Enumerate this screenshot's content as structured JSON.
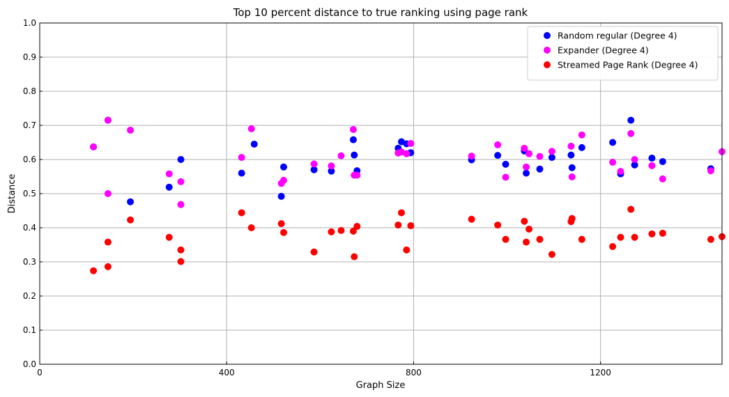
{
  "chart_data": {
    "type": "scatter",
    "title": "Top 10 percent distance to true ranking using page rank",
    "xlabel": "Graph Size",
    "ylabel": "Distance",
    "xlim": [
      0,
      1460
    ],
    "ylim": [
      0,
      1.0
    ],
    "xticks": [
      0,
      400,
      800,
      1200
    ],
    "yticks": [
      0,
      0.1,
      0.2,
      0.3,
      0.4,
      0.5,
      0.6,
      0.7,
      0.8,
      0.9,
      1.0
    ],
    "grid": true,
    "legend_position": "top-right",
    "series": [
      {
        "name": "Random regular (Degree 4)",
        "color": "#0000ff",
        "points": [
          [
            115,
            0.637
          ],
          [
            146,
            0.715
          ],
          [
            194,
            0.476
          ],
          [
            277,
            0.519
          ],
          [
            302,
            0.6
          ],
          [
            432,
            0.56
          ],
          [
            459,
            0.645
          ],
          [
            517,
            0.492
          ],
          [
            522,
            0.578
          ],
          [
            587,
            0.57
          ],
          [
            624,
            0.566
          ],
          [
            671,
            0.658
          ],
          [
            673,
            0.613
          ],
          [
            679,
            0.567
          ],
          [
            767,
            0.633
          ],
          [
            774,
            0.652
          ],
          [
            785,
            0.646
          ],
          [
            794,
            0.62
          ],
          [
            924,
            0.599
          ],
          [
            980,
            0.612
          ],
          [
            997,
            0.586
          ],
          [
            1037,
            0.625
          ],
          [
            1041,
            0.56
          ],
          [
            1070,
            0.572
          ],
          [
            1096,
            0.606
          ],
          [
            1137,
            0.613
          ],
          [
            1139,
            0.576
          ],
          [
            1160,
            0.635
          ],
          [
            1226,
            0.65
          ],
          [
            1243,
            0.558
          ],
          [
            1265,
            0.715
          ],
          [
            1273,
            0.584
          ],
          [
            1310,
            0.604
          ],
          [
            1333,
            0.594
          ],
          [
            1436,
            0.573
          ]
        ]
      },
      {
        "name": "Expander (Degree 4)",
        "color": "#ff00ff",
        "points": [
          [
            115,
            0.637
          ],
          [
            146,
            0.715
          ],
          [
            146,
            0.5
          ],
          [
            194,
            0.686
          ],
          [
            277,
            0.558
          ],
          [
            302,
            0.535
          ],
          [
            302,
            0.468
          ],
          [
            432,
            0.606
          ],
          [
            453,
            0.69
          ],
          [
            517,
            0.53
          ],
          [
            522,
            0.539
          ],
          [
            587,
            0.587
          ],
          [
            624,
            0.581
          ],
          [
            645,
            0.611
          ],
          [
            671,
            0.688
          ],
          [
            673,
            0.554
          ],
          [
            679,
            0.554
          ],
          [
            767,
            0.619
          ],
          [
            774,
            0.622
          ],
          [
            785,
            0.617
          ],
          [
            794,
            0.647
          ],
          [
            924,
            0.61
          ],
          [
            980,
            0.643
          ],
          [
            997,
            0.548
          ],
          [
            1037,
            0.633
          ],
          [
            1041,
            0.578
          ],
          [
            1047,
            0.617
          ],
          [
            1070,
            0.609
          ],
          [
            1096,
            0.624
          ],
          [
            1137,
            0.639
          ],
          [
            1139,
            0.549
          ],
          [
            1160,
            0.672
          ],
          [
            1226,
            0.592
          ],
          [
            1243,
            0.565
          ],
          [
            1265,
            0.676
          ],
          [
            1273,
            0.6
          ],
          [
            1310,
            0.582
          ],
          [
            1333,
            0.543
          ],
          [
            1436,
            0.567
          ],
          [
            1460,
            0.623
          ]
        ]
      },
      {
        "name": "Streamed Page Rank (Degree 4)",
        "color": "#ff0000",
        "points": [
          [
            115,
            0.274
          ],
          [
            146,
            0.286
          ],
          [
            146,
            0.358
          ],
          [
            194,
            0.423
          ],
          [
            277,
            0.372
          ],
          [
            302,
            0.335
          ],
          [
            302,
            0.301
          ],
          [
            432,
            0.444
          ],
          [
            453,
            0.4
          ],
          [
            517,
            0.412
          ],
          [
            522,
            0.386
          ],
          [
            587,
            0.329
          ],
          [
            624,
            0.388
          ],
          [
            645,
            0.392
          ],
          [
            671,
            0.39
          ],
          [
            673,
            0.315
          ],
          [
            679,
            0.404
          ],
          [
            767,
            0.408
          ],
          [
            774,
            0.444
          ],
          [
            785,
            0.335
          ],
          [
            794,
            0.406
          ],
          [
            924,
            0.425
          ],
          [
            980,
            0.408
          ],
          [
            997,
            0.366
          ],
          [
            1037,
            0.419
          ],
          [
            1041,
            0.358
          ],
          [
            1047,
            0.396
          ],
          [
            1070,
            0.366
          ],
          [
            1096,
            0.322
          ],
          [
            1137,
            0.418
          ],
          [
            1139,
            0.427
          ],
          [
            1160,
            0.366
          ],
          [
            1226,
            0.345
          ],
          [
            1243,
            0.372
          ],
          [
            1265,
            0.454
          ],
          [
            1273,
            0.372
          ],
          [
            1310,
            0.382
          ],
          [
            1333,
            0.384
          ],
          [
            1436,
            0.366
          ],
          [
            1460,
            0.374
          ]
        ]
      }
    ]
  }
}
